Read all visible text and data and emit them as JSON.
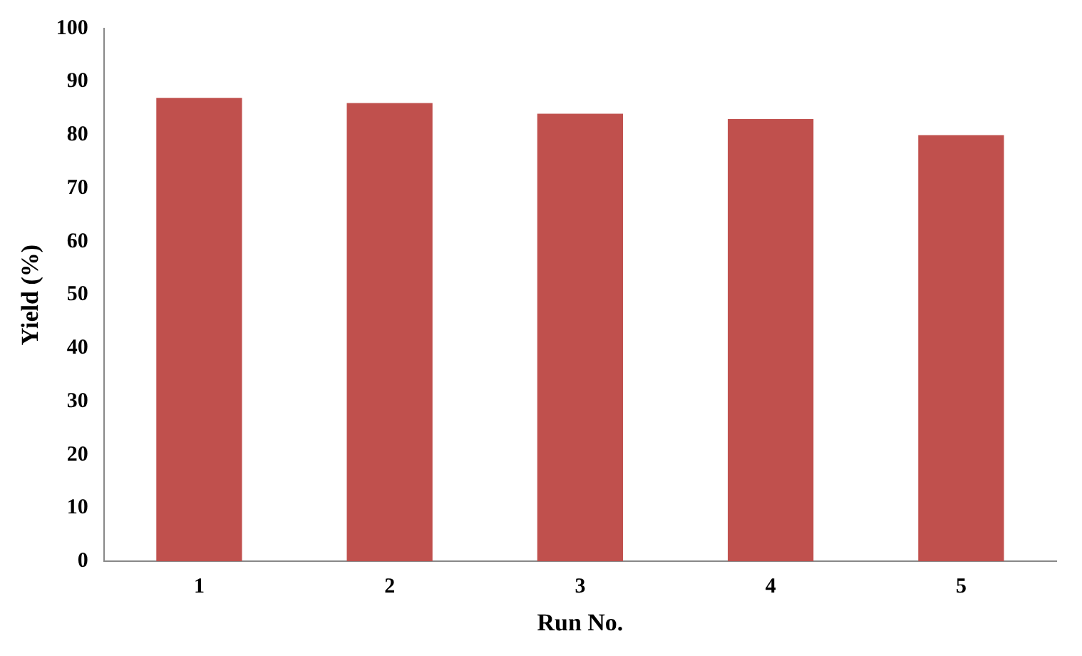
{
  "chart_data": {
    "type": "bar",
    "xlabel": "Run No.",
    "ylabel": "Yield (%)",
    "categories": [
      "1",
      "2",
      "3",
      "4",
      "5"
    ],
    "values": [
      87,
      86,
      84,
      83,
      80
    ],
    "color": "#c0504d",
    "ylim": [
      0,
      100
    ],
    "yticks": [
      0,
      10,
      20,
      30,
      40,
      50,
      60,
      70,
      80,
      90,
      100
    ],
    "grid": false,
    "legend": false
  }
}
